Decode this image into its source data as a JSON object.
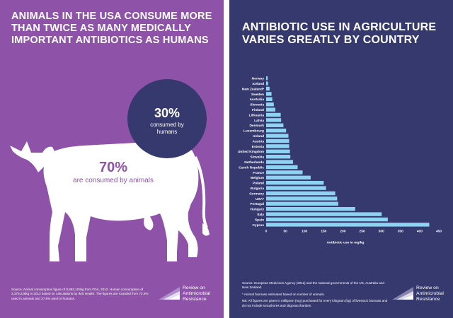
{
  "left_panel": {
    "headline": "ANIMALS IN THE USA CONSUME MORE THAN TWICE AS MANY MEDICALLY IMPORTANT ANTIBIOTICS AS HUMANS",
    "human_percent": "30%",
    "human_label": "consumed by humans",
    "animal_percent": "70%",
    "animal_label": "are consumed by animals",
    "source": "Source: Animal consumption figure of 8,893,103kg from FDA, 2012. Human consumption of 3,379,226kg in 2012 based on calculations by IMS Health. The figures are rounded from 72.5% used in animals and 27.5% used in humans.",
    "logo_text": "Review on Antimicrobial Resistance",
    "colors": {
      "background": "#8e52a8",
      "bubble": "#36396e",
      "cow": "#ffffff"
    }
  },
  "right_panel": {
    "headline": "ANTIBIOTIC USE IN AGRICULTURE VARIES GREATLY BY COUNTRY",
    "source": "Source: European Medicines Agency (2011) and the national governments of the US, Australia and New Zealand.",
    "note1": "* Animal biomass estimated based on number of animals.",
    "note2": "NB: All figures are given in milligram (mg) purchased for every kilogram (kg) of livestock biomass and do not include ionophores and oligosaccharides.",
    "logo_text": "Review on Antimicrobial Resistance",
    "colors": {
      "background": "#36396e",
      "bar": "#8fd3f2",
      "text": "#ffffff"
    }
  },
  "chart_data": {
    "type": "bar",
    "orientation": "horizontal",
    "categories": [
      "Norway",
      "Iceland",
      "New Zealand*",
      "Sweden",
      "Australia",
      "Slovenia",
      "Finland",
      "Lithuania",
      "Latvia",
      "Denmark",
      "Luxembourg",
      "Ireland",
      "Austria",
      "Estonia",
      "United Kingdom",
      "Slovakia",
      "Netherlands",
      "Czech Republic",
      "France",
      "Belgium",
      "Poland",
      "Bulgaria",
      "Germany",
      "USA*",
      "Portugal",
      "Hungary",
      "Italy",
      "Spain",
      "Cyprus"
    ],
    "values": [
      4,
      5,
      9,
      14,
      16,
      20,
      24,
      38,
      39,
      45,
      52,
      58,
      60,
      60,
      62,
      63,
      70,
      82,
      95,
      116,
      150,
      156,
      180,
      185,
      188,
      232,
      301,
      317,
      425
    ],
    "xlabel": "Antibiotic use in mg/kg",
    "xlim": [
      0,
      450
    ],
    "xticks": [
      "0",
      "50",
      "100",
      "150",
      "200",
      "250",
      "300",
      "350",
      "400",
      "450"
    ],
    "grid": false,
    "legend": "none"
  }
}
